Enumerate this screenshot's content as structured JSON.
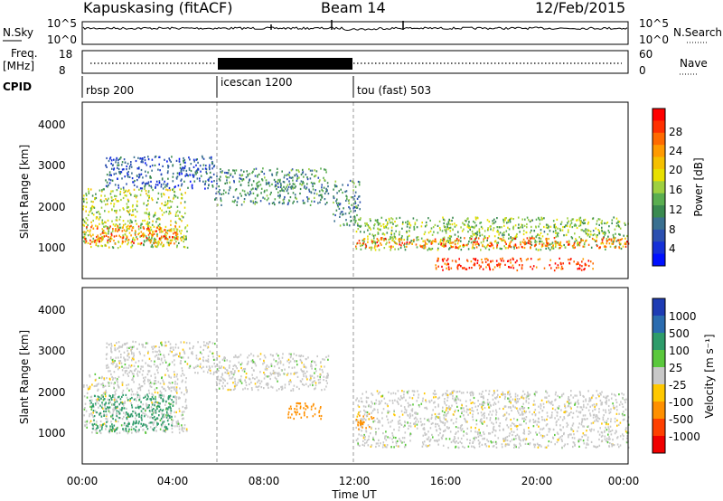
{
  "header": {
    "station": "Kapuskasing (fitACF)",
    "beam": "Beam 14",
    "date": "12/Feb/2015"
  },
  "noise_panel": {
    "left_label": "N.Sky",
    "right_label": "N.Search",
    "left_ticks": [
      "10^5",
      "10^0"
    ],
    "right_ticks": [
      "10^5",
      "10^0"
    ]
  },
  "freq_panel": {
    "left_label_1": "Freq.",
    "left_label_2": "[MHz]",
    "right_label": "Nave",
    "left_ticks": [
      "18",
      "8"
    ],
    "right_ticks": [
      "60",
      "0"
    ]
  },
  "cpid": {
    "label": "CPID",
    "segments": [
      {
        "name": "rbsp 200",
        "start_h": 0
      },
      {
        "name": "icescan 1200",
        "start_h": 6
      },
      {
        "name": "tou (fast) 503",
        "start_h": 12
      }
    ]
  },
  "colorbars": {
    "power": {
      "label": "Power [dB]",
      "ticks": [
        "28",
        "24",
        "20",
        "16",
        "12",
        "8",
        "4"
      ],
      "colors": [
        "#ff0000",
        "#ff3000",
        "#ff6a00",
        "#ff9a00",
        "#f5c000",
        "#e8e000",
        "#9ed040",
        "#5aae50",
        "#3a8a50",
        "#3a7090",
        "#2c50b0",
        "#1530d8",
        "#0010ff"
      ]
    },
    "velocity": {
      "label": "Velocity [m s⁻¹]",
      "ticks": [
        "1000",
        "500",
        "100",
        "25",
        "-25",
        "-100",
        "-500",
        "-1000"
      ],
      "colors": [
        "#1e3cb4",
        "#2a6cb0",
        "#2e9c6a",
        "#5ac83c",
        "#c8c8c8",
        "#ffc800",
        "#ff9000",
        "#ff4000",
        "#f00000"
      ]
    }
  },
  "chart_data": [
    {
      "type": "heatmap",
      "name": "power",
      "xlabel": "Time UT",
      "ylabel": "Slant Range [km]",
      "x_ticks": [
        "00:00",
        "04:00",
        "08:00",
        "12:00",
        "16:00",
        "20:00",
        "00:00"
      ],
      "y_ticks": [
        "1000",
        "2000",
        "3000",
        "4000"
      ],
      "xlim_hours": [
        0,
        24
      ],
      "ylim_km": [
        180,
        4500
      ],
      "echo_regions": [
        {
          "t": [
            0.0,
            4.6
          ],
          "r": [
            950,
            2400
          ],
          "level": 16
        },
        {
          "t": [
            0.0,
            4.2
          ],
          "r": [
            1050,
            1500
          ],
          "level": 26
        },
        {
          "t": [
            1.0,
            5.8
          ],
          "r": [
            2400,
            3200
          ],
          "level": 6
        },
        {
          "t": [
            5.8,
            10.8
          ],
          "r": [
            2000,
            2900
          ],
          "level": 10
        },
        {
          "t": [
            11.0,
            12.2
          ],
          "r": [
            1500,
            2600
          ],
          "level": 10
        },
        {
          "t": [
            12.0,
            24.0
          ],
          "r": [
            900,
            1700
          ],
          "level": 14
        },
        {
          "t": [
            12.0,
            24.0
          ],
          "r": [
            950,
            1200
          ],
          "level": 26
        },
        {
          "t": [
            15.5,
            22.5
          ],
          "r": [
            400,
            700
          ],
          "level": 28
        }
      ]
    },
    {
      "type": "heatmap",
      "name": "velocity",
      "xlabel": "Time UT",
      "ylabel": "Slant Range [km]",
      "x_ticks": [
        "00:00",
        "04:00",
        "08:00",
        "12:00",
        "16:00",
        "20:00",
        "00:00"
      ],
      "y_ticks": [
        "1000",
        "2000",
        "3000",
        "4000"
      ],
      "xlim_hours": [
        0,
        24
      ],
      "ylim_km": [
        180,
        4500
      ],
      "echo_regions": [
        {
          "t": [
            0.0,
            4.6
          ],
          "r": [
            950,
            2400
          ],
          "velocity": 0
        },
        {
          "t": [
            0.3,
            4.0
          ],
          "r": [
            1000,
            1900
          ],
          "velocity": 200
        },
        {
          "t": [
            1.0,
            5.8
          ],
          "r": [
            2400,
            3200
          ],
          "velocity": 0
        },
        {
          "t": [
            5.8,
            10.8
          ],
          "r": [
            2000,
            2900
          ],
          "velocity": 0
        },
        {
          "t": [
            9.0,
            10.5
          ],
          "r": [
            1300,
            1700
          ],
          "velocity": -150
        },
        {
          "t": [
            12.0,
            24.0
          ],
          "r": [
            600,
            2000
          ],
          "velocity": 0
        },
        {
          "t": [
            12.0,
            12.8
          ],
          "r": [
            1050,
            1450
          ],
          "velocity": -200
        }
      ]
    }
  ]
}
